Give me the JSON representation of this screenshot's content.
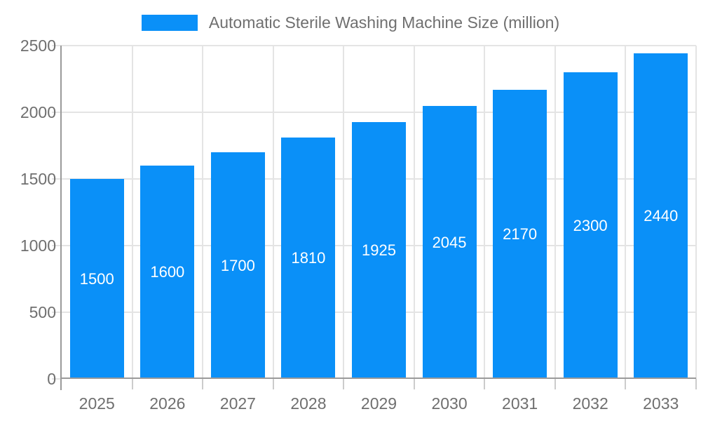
{
  "chart_data": {
    "type": "bar",
    "categories": [
      "2025",
      "2026",
      "2027",
      "2028",
      "2029",
      "2030",
      "2031",
      "2032",
      "2033"
    ],
    "series": [
      {
        "name": "Automatic Sterile Washing Machine Size (million)",
        "values": [
          1500,
          1600,
          1700,
          1810,
          1925,
          2045,
          2170,
          2300,
          2440
        ]
      }
    ],
    "xlabel": "",
    "ylabel": "",
    "ylim": [
      0,
      2500
    ],
    "yticks": [
      0,
      500,
      1000,
      1500,
      2000,
      2500
    ],
    "grid": true,
    "legend_position": "top",
    "value_labels_position": "inside-center",
    "colors": {
      "bar": "#0a90f8",
      "grid": "#e4e4e4",
      "axis": "#9a9a9a",
      "tick": "#cccccc",
      "text": "#6f6f6f",
      "value_text": "#ffffff",
      "background": "#ffffff"
    }
  }
}
